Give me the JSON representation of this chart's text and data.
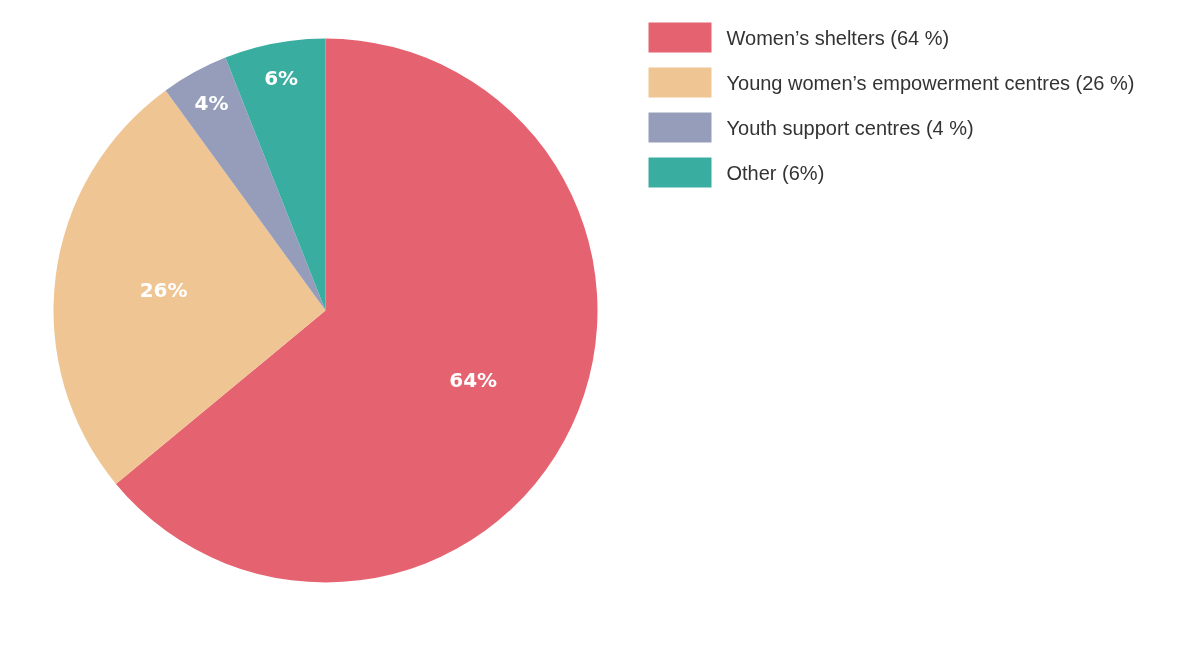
{
  "chart_data": {
    "type": "pie",
    "categories": [
      "Women’s shelters (64 %)",
      "Young women’s empowerment centres (26 %)",
      "Youth support centres (4 %)",
      "Other  (6%)"
    ],
    "values": [
      64,
      26,
      4,
      6
    ],
    "colors": [
      "#e56370",
      "#f0c594",
      "#959dbb",
      "#3aada1"
    ],
    "value_labels": [
      "64%",
      "26%",
      "4%",
      "6%"
    ],
    "legend": "top right"
  }
}
